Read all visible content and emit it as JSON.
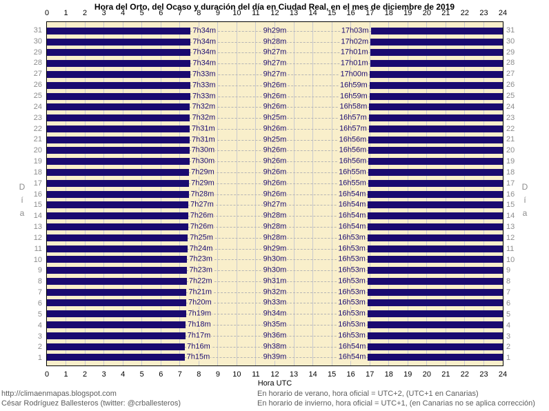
{
  "title": "Hora del Orto, del Ocaso y duración del día en Ciudad Real, en el mes de diciembre de 2019",
  "axes": {
    "x_title": "Hora UTC",
    "y_title": "Día",
    "x_ticks": [
      0,
      1,
      2,
      3,
      4,
      5,
      6,
      7,
      8,
      9,
      10,
      11,
      12,
      13,
      14,
      15,
      16,
      17,
      18,
      19,
      20,
      21,
      22,
      23,
      24
    ],
    "x_range": [
      0,
      24
    ]
  },
  "chart_data": {
    "type": "bar",
    "subtype": "horizontal-night-span-bars",
    "title": "Hora del Orto, del Ocaso y duración del día en Ciudad Real, en el mes de diciembre de 2019",
    "xlabel": "Hora UTC",
    "ylabel": "Día",
    "xlim": [
      0,
      24
    ],
    "grid": "vertical-hour-lines",
    "legend": "none",
    "days": [
      {
        "day": 31,
        "orto": "7h34m",
        "duracion": "9h29m",
        "ocaso": "17h03m"
      },
      {
        "day": 30,
        "orto": "7h34m",
        "duracion": "9h28m",
        "ocaso": "17h02m"
      },
      {
        "day": 29,
        "orto": "7h34m",
        "duracion": "9h27m",
        "ocaso": "17h01m"
      },
      {
        "day": 28,
        "orto": "7h34m",
        "duracion": "9h27m",
        "ocaso": "17h01m"
      },
      {
        "day": 27,
        "orto": "7h33m",
        "duracion": "9h27m",
        "ocaso": "17h00m"
      },
      {
        "day": 26,
        "orto": "7h33m",
        "duracion": "9h26m",
        "ocaso": "16h59m"
      },
      {
        "day": 25,
        "orto": "7h33m",
        "duracion": "9h26m",
        "ocaso": "16h59m"
      },
      {
        "day": 24,
        "orto": "7h32m",
        "duracion": "9h26m",
        "ocaso": "16h58m"
      },
      {
        "day": 23,
        "orto": "7h32m",
        "duracion": "9h25m",
        "ocaso": "16h57m"
      },
      {
        "day": 22,
        "orto": "7h31m",
        "duracion": "9h26m",
        "ocaso": "16h57m"
      },
      {
        "day": 21,
        "orto": "7h31m",
        "duracion": "9h25m",
        "ocaso": "16h56m"
      },
      {
        "day": 20,
        "orto": "7h30m",
        "duracion": "9h26m",
        "ocaso": "16h56m"
      },
      {
        "day": 19,
        "orto": "7h30m",
        "duracion": "9h26m",
        "ocaso": "16h56m"
      },
      {
        "day": 18,
        "orto": "7h29m",
        "duracion": "9h26m",
        "ocaso": "16h55m"
      },
      {
        "day": 17,
        "orto": "7h29m",
        "duracion": "9h26m",
        "ocaso": "16h55m"
      },
      {
        "day": 16,
        "orto": "7h28m",
        "duracion": "9h26m",
        "ocaso": "16h54m"
      },
      {
        "day": 15,
        "orto": "7h27m",
        "duracion": "9h27m",
        "ocaso": "16h54m"
      },
      {
        "day": 14,
        "orto": "7h26m",
        "duracion": "9h28m",
        "ocaso": "16h54m"
      },
      {
        "day": 13,
        "orto": "7h26m",
        "duracion": "9h28m",
        "ocaso": "16h54m"
      },
      {
        "day": 12,
        "orto": "7h25m",
        "duracion": "9h28m",
        "ocaso": "16h53m"
      },
      {
        "day": 11,
        "orto": "7h24m",
        "duracion": "9h29m",
        "ocaso": "16h53m"
      },
      {
        "day": 10,
        "orto": "7h23m",
        "duracion": "9h30m",
        "ocaso": "16h53m"
      },
      {
        "day": 9,
        "orto": "7h23m",
        "duracion": "9h30m",
        "ocaso": "16h53m"
      },
      {
        "day": 8,
        "orto": "7h22m",
        "duracion": "9h31m",
        "ocaso": "16h53m"
      },
      {
        "day": 7,
        "orto": "7h21m",
        "duracion": "9h32m",
        "ocaso": "16h53m"
      },
      {
        "day": 6,
        "orto": "7h20m",
        "duracion": "9h33m",
        "ocaso": "16h53m"
      },
      {
        "day": 5,
        "orto": "7h19m",
        "duracion": "9h34m",
        "ocaso": "16h53m"
      },
      {
        "day": 4,
        "orto": "7h18m",
        "duracion": "9h35m",
        "ocaso": "16h53m"
      },
      {
        "day": 3,
        "orto": "7h17m",
        "duracion": "9h36m",
        "ocaso": "16h53m"
      },
      {
        "day": 2,
        "orto": "7h16m",
        "duracion": "9h38m",
        "ocaso": "16h54m"
      },
      {
        "day": 1,
        "orto": "7h15m",
        "duracion": "9h39m",
        "ocaso": "16h54m"
      }
    ]
  },
  "footer": {
    "left": [
      "http://climaenmapas.blogspot.com",
      "César Rodríguez Ballesteros (twitter: @crballesteros)"
    ],
    "right": [
      "En horario de verano, hora oficial = UTC+2, (UTC+1 en Canarias)",
      "En horario de invierno, hora oficial = UTC+1, (en Canarias no se aplica corrección)"
    ]
  },
  "colors": {
    "night_bar": "#1A0A70",
    "daylight_background": "#F9EFCB",
    "gridline": "#C9C9CE",
    "row_dash": "#B4B4B4",
    "day_number": "#8C8C8C",
    "time_label": "#1A0A70",
    "footer_text": "#5C5C5C",
    "axis_text": "#000000"
  }
}
